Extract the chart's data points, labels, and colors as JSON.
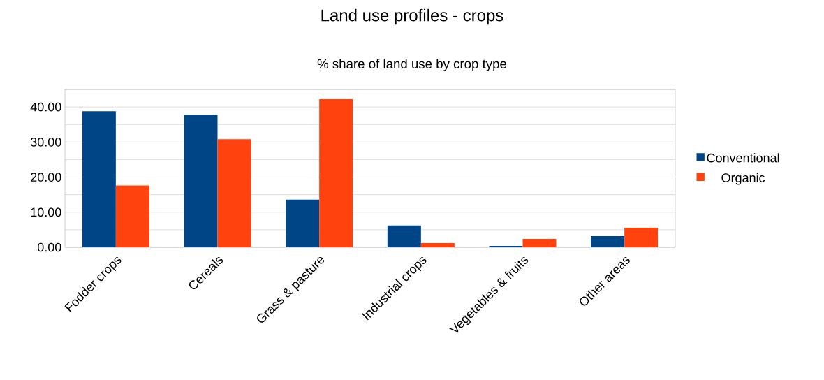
{
  "chart_data": {
    "type": "bar",
    "title": "Land use profiles - crops",
    "subtitle": "% share of land use by crop type",
    "categories": [
      "Fodder crops",
      "Cereals",
      "Grass & pasture",
      "Industrial crops",
      "Vegetables & fruits",
      "Other areas"
    ],
    "series": [
      {
        "name": "Conventional",
        "color": "#004586",
        "values": [
          38.8,
          37.8,
          13.6,
          6.2,
          0.4,
          3.2
        ]
      },
      {
        "name": "Organic",
        "color": "#ff420e",
        "values": [
          17.6,
          30.8,
          42.2,
          1.2,
          2.4,
          5.6
        ]
      }
    ],
    "ylim": [
      0,
      45
    ],
    "yticks": [
      {
        "value": 0,
        "label": "0.00"
      },
      {
        "value": 5,
        "label": null
      },
      {
        "value": 10,
        "label": "10.00"
      },
      {
        "value": 15,
        "label": null
      },
      {
        "value": 20,
        "label": "20.00"
      },
      {
        "value": 25,
        "label": null
      },
      {
        "value": 30,
        "label": "30.00"
      },
      {
        "value": 35,
        "label": null
      },
      {
        "value": 40,
        "label": "40.00"
      },
      {
        "value": 45,
        "label": null
      }
    ],
    "grid": "y",
    "legend": "right"
  }
}
